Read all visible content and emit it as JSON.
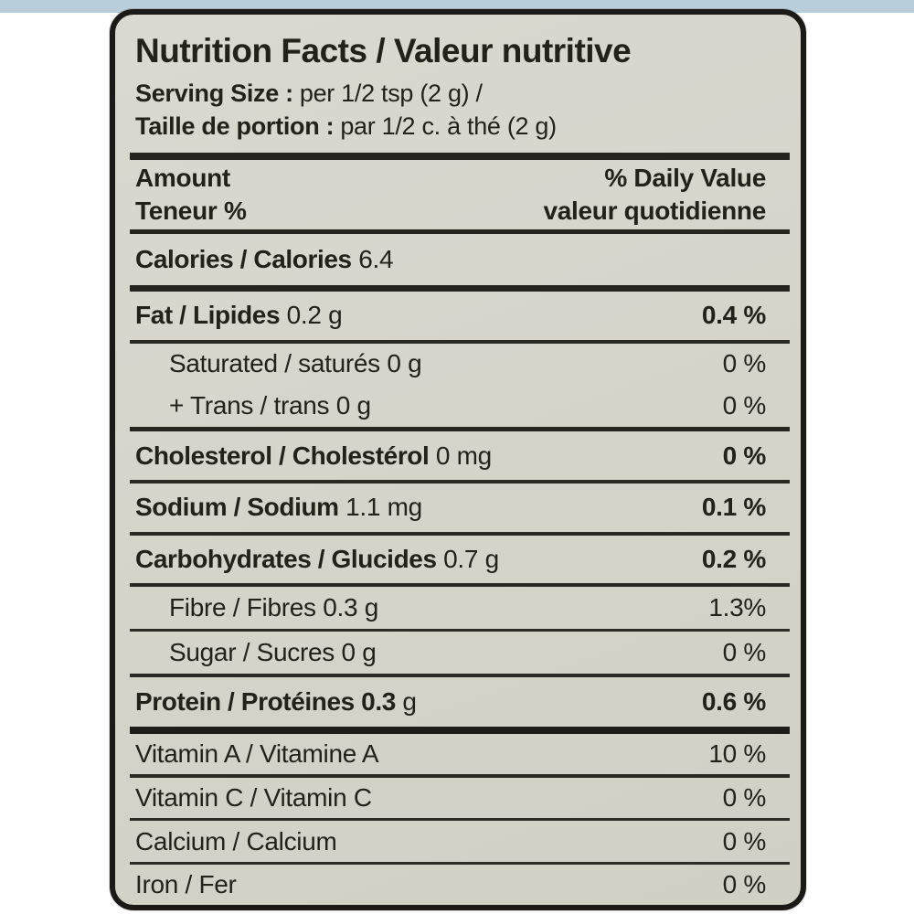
{
  "meta": {
    "background_color": "#ffffff",
    "package_strip_color": "#b9cedb",
    "label_background_color": "#d7d5cc",
    "label_border_color": "#1b1a16",
    "text_color": "#232119"
  },
  "label": {
    "title": "Nutrition Facts / Valeur nutritive",
    "serving": {
      "en_bold": "Serving Size :",
      "en_rest": "per 1/2 tsp (2 g)  /",
      "fr_bold": "Taille de portion :",
      "fr_rest": "par 1/2 c. à thé (2 g)"
    },
    "columns": {
      "amount_en": "Amount",
      "amount_fr": "Teneur %",
      "daily_value_en": "% Daily Value",
      "daily_value_fr": "valeur quotidienne"
    },
    "calories": {
      "label_bold": "Calories / Calories",
      "value": " 6.4"
    },
    "rows": [
      {
        "name_bold": "Fat / Lipides",
        "name_rest": " 0.2 g",
        "value": "0.4 %"
      },
      {
        "name_bold": "",
        "name_rest": "Saturated / saturés 0 g",
        "value": "0 %"
      },
      {
        "name_bold": "",
        "name_rest": "+ Trans / trans 0 g",
        "value": "0 %"
      },
      {
        "name_bold": "Cholesterol / Cholestérol",
        "name_rest": " 0 mg",
        "value": "0 %"
      },
      {
        "name_bold": "Sodium / Sodium",
        "name_rest": " 1.1 mg",
        "value": "0.1 %"
      },
      {
        "name_bold": "Carbohydrates / Glucides",
        "name_rest": " 0.7 g",
        "value": "0.2 %"
      },
      {
        "name_bold": "",
        "name_rest": "Fibre / Fibres 0.3 g",
        "value": "1.3%"
      },
      {
        "name_bold": "",
        "name_rest": "Sugar / Sucres 0 g",
        "value": "0 %"
      },
      {
        "name_bold": "Protein / Protéines 0.3",
        "name_rest": " g",
        "value": "0.6 %"
      },
      {
        "name_bold": "",
        "name_rest": "Vitamin A / Vitamine A",
        "value": "10 %"
      },
      {
        "name_bold": "",
        "name_rest": "Vitamin C / Vitamin C",
        "value": "0 %"
      },
      {
        "name_bold": "",
        "name_rest": "Calcium / Calcium",
        "value": "0 %"
      },
      {
        "name_bold": "",
        "name_rest": "Iron / Fer",
        "value": "0 %"
      }
    ]
  }
}
